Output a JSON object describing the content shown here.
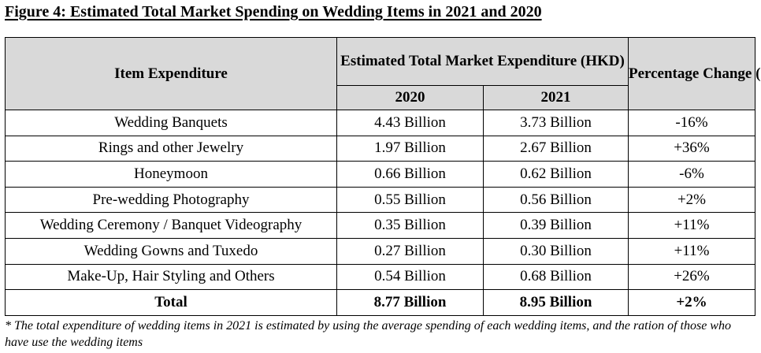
{
  "figure": {
    "title": "Figure 4: Estimated Total Market Spending on Wedding Items in 2021 and 2020"
  },
  "table": {
    "headers": {
      "item": "Item Expenditure",
      "expenditure_group": "Estimated Total Market Expenditure (HKD)",
      "year_2020": "2020",
      "year_2021": "2021",
      "change": "Percentage Change (%)"
    },
    "rows": [
      {
        "item": "Wedding Banquets",
        "y2020": "4.43 Billion",
        "y2021": "3.73 Billion",
        "change": "-16%"
      },
      {
        "item": "Rings and other Jewelry",
        "y2020": "1.97 Billion",
        "y2021": "2.67 Billion",
        "change": "+36%"
      },
      {
        "item": "Honeymoon",
        "y2020": "0.66 Billion",
        "y2021": "0.62 Billion",
        "change": "-6%"
      },
      {
        "item": "Pre-wedding Photography",
        "y2020": "0.55 Billion",
        "y2021": "0.56 Billion",
        "change": "+2%"
      },
      {
        "item": "Wedding Ceremony / Banquet Videography",
        "y2020": "0.35 Billion",
        "y2021": "0.39 Billion",
        "change": "+11%"
      },
      {
        "item": "Wedding Gowns and Tuxedo",
        "y2020": "0.27 Billion",
        "y2021": "0.30 Billion",
        "change": "+11%"
      },
      {
        "item": "Make-Up, Hair Styling and Others",
        "y2020": "0.54 Billion",
        "y2021": "0.68 Billion",
        "change": "+26%"
      }
    ],
    "total": {
      "item": "Total",
      "y2020": "8.77 Billion",
      "y2021": "8.95 Billion",
      "change": "+2%"
    }
  },
  "footnote": "* The total expenditure of wedding items in 2021 is estimated by using the average spending of each wedding items, and the ration of those who have use the wedding items"
}
